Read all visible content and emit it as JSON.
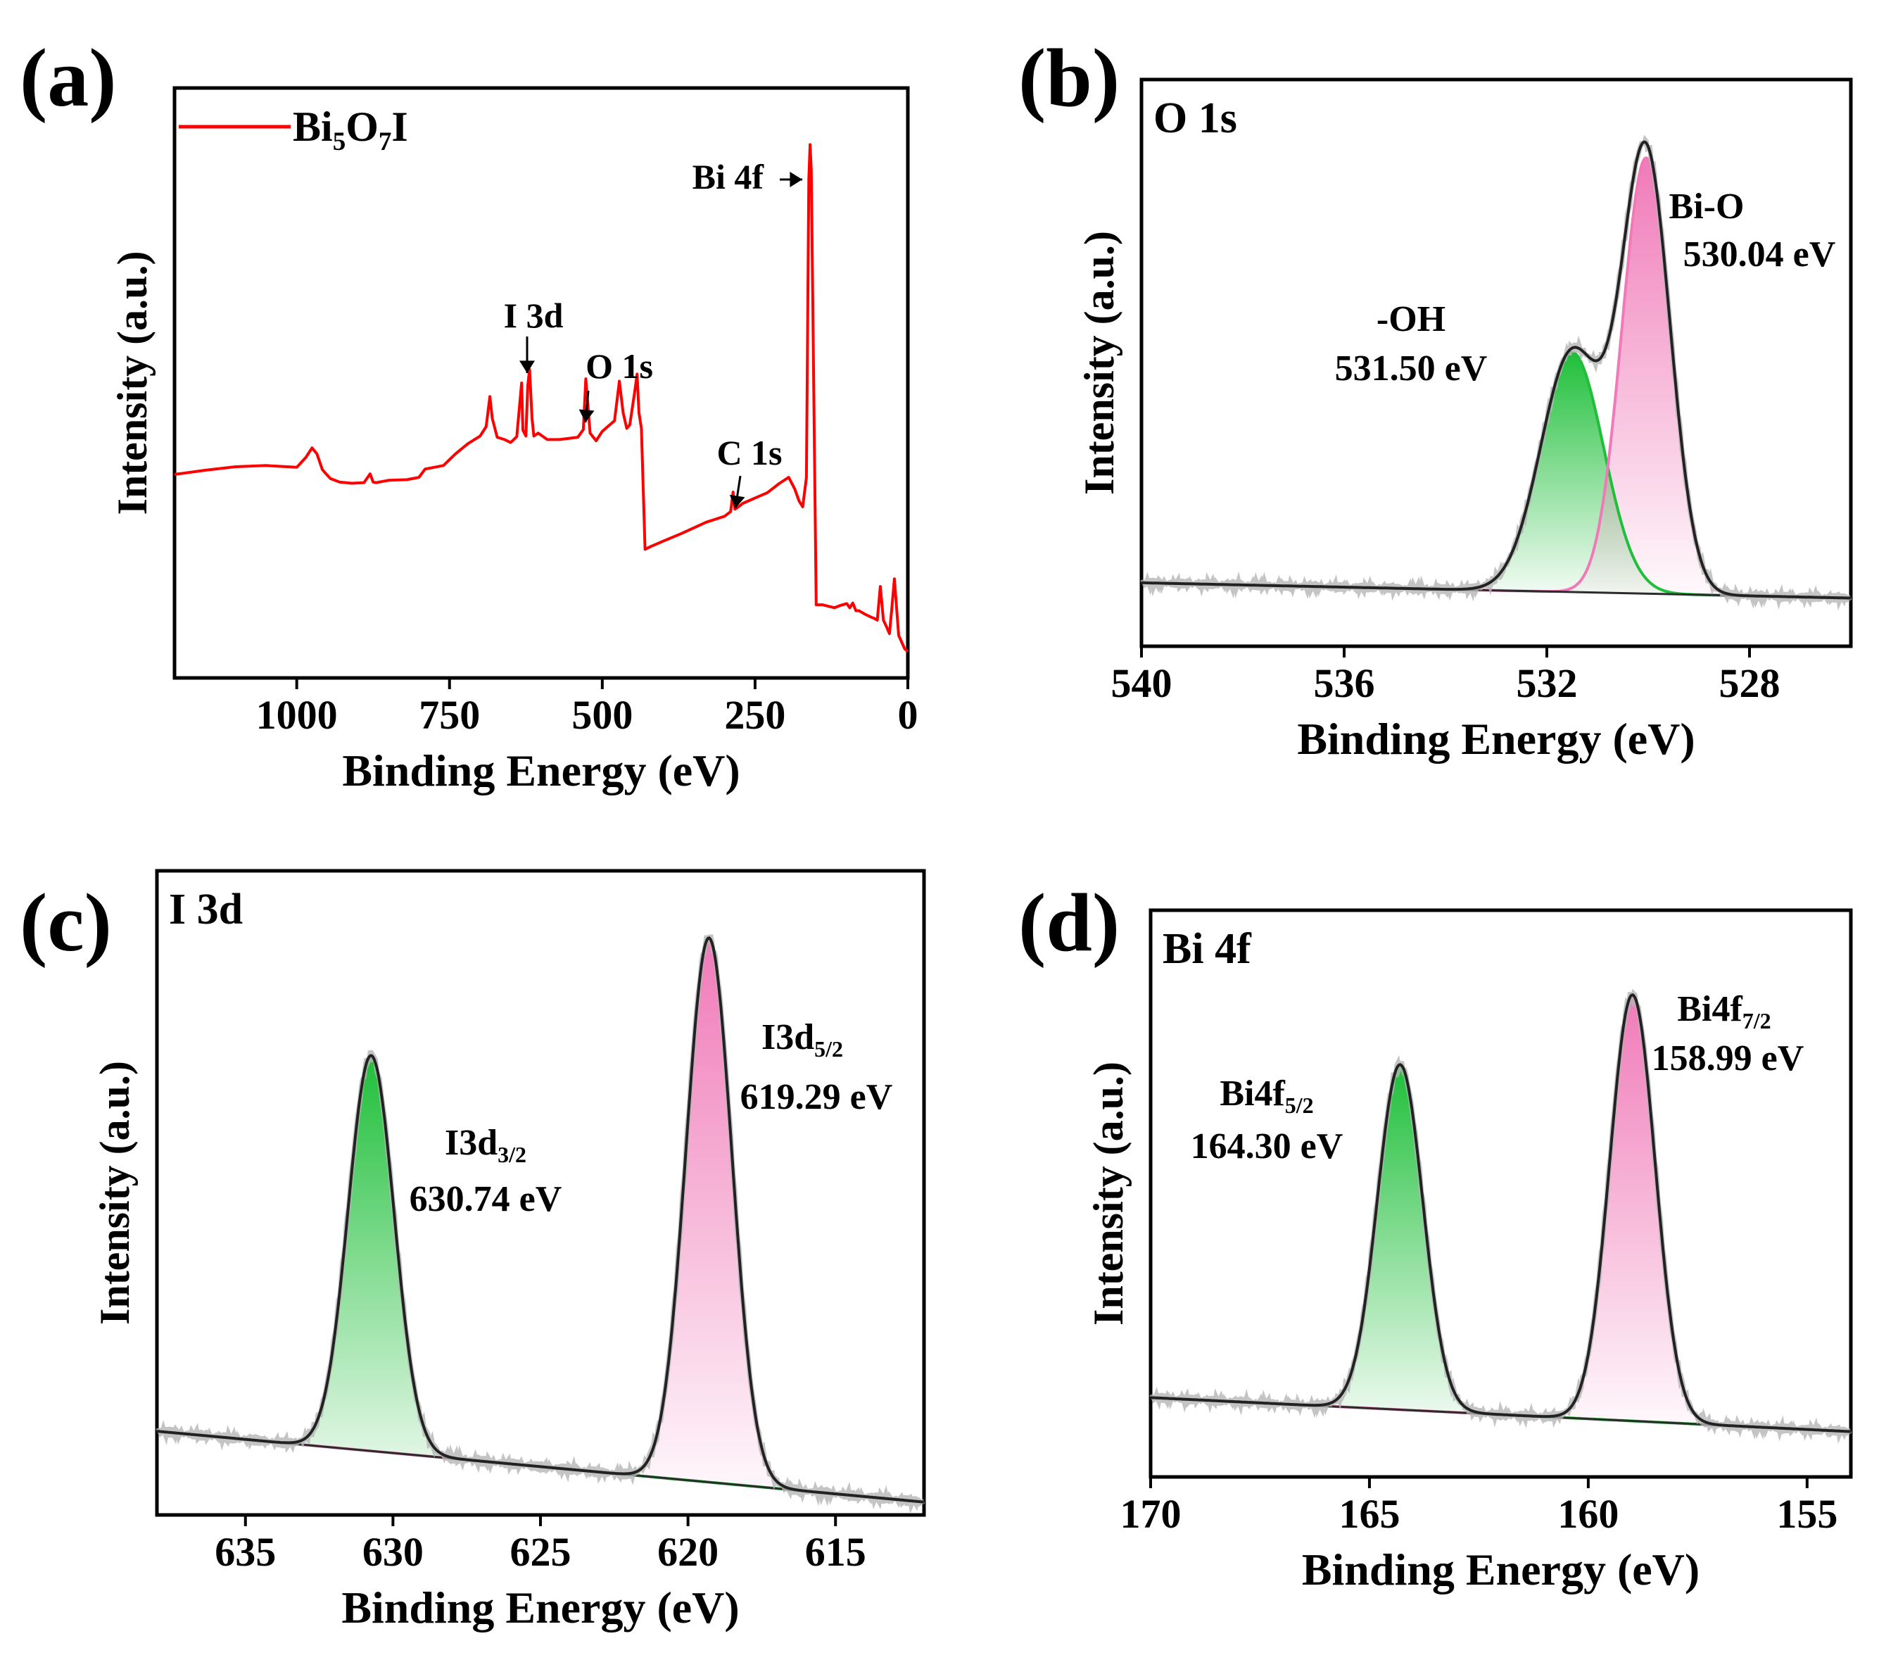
{
  "chart_data": [
    {
      "panel": "(a)",
      "type": "line",
      "title": "",
      "xlabel": "Binding Energy (eV)",
      "ylabel": "Intensity (a.u.)",
      "xlim": [
        1200,
        0
      ],
      "ylim": [
        0,
        100
      ],
      "xticks": [
        1000,
        750,
        500,
        250,
        0
      ],
      "legend": {
        "label": "Bi5O7I",
        "parts": [
          "Bi",
          "5",
          "O",
          "7",
          "I"
        ],
        "color": "#ff0000",
        "position": "top-left"
      },
      "series": [
        {
          "name": "Bi5O7I",
          "color": "#ff0000",
          "x": [
            1200,
            1150,
            1100,
            1050,
            1000,
            985,
            975,
            967,
            958,
            945,
            930,
            910,
            890,
            880,
            875,
            870,
            850,
            820,
            800,
            790,
            760,
            740,
            720,
            700,
            690,
            684,
            680,
            672,
            660,
            650,
            640,
            632,
            630,
            625,
            622,
            619,
            615,
            612,
            605,
            590,
            570,
            540,
            531,
            527,
            520,
            510,
            500,
            480,
            472,
            466,
            460,
            455,
            447,
            443,
            440,
            436,
            430,
            420,
            400,
            370,
            330,
            300,
            290,
            286,
            283,
            280,
            270,
            250,
            230,
            210,
            195,
            185,
            178,
            172,
            166,
            162,
            160,
            158,
            150,
            140,
            120,
            110,
            100,
            95,
            90,
            85,
            80,
            70,
            60,
            55,
            50,
            45,
            40,
            35,
            30,
            26,
            22,
            15,
            5,
            0
          ],
          "y": [
            34.5,
            35.2,
            35.8,
            36.0,
            35.7,
            37.4,
            39.0,
            38.0,
            35.3,
            33.8,
            33.2,
            33.0,
            33.1,
            34.6,
            33.2,
            33.1,
            33.5,
            33.6,
            34.0,
            35.4,
            36.0,
            38.0,
            39.7,
            41.0,
            42.6,
            47.7,
            44.0,
            40.8,
            40.4,
            39.9,
            40.9,
            50.0,
            42.0,
            41.0,
            49.5,
            52.3,
            44.0,
            41.0,
            41.5,
            40.4,
            40.4,
            40.8,
            42.1,
            50.7,
            41.5,
            40.2,
            41.8,
            43.6,
            50.3,
            45.0,
            42.3,
            42.9,
            48.5,
            51.5,
            45.0,
            42.3,
            21.8,
            22.3,
            23.2,
            24.5,
            26.4,
            27.4,
            28.2,
            31.5,
            28.6,
            28.8,
            29.6,
            30.5,
            31.4,
            33.0,
            34.0,
            32.0,
            30.0,
            29.0,
            34.0,
            84.6,
            90.4,
            86.0,
            12.4,
            12.4,
            11.9,
            12.3,
            12.6,
            11.9,
            12.7,
            11.4,
            11.4,
            10.8,
            10.3,
            10.1,
            9.8,
            15.5,
            9.8,
            8.7,
            7.5,
            12.0,
            16.8,
            7.2,
            4.9,
            4.5
          ]
        }
      ],
      "annotations": [
        {
          "text": "Bi 4f",
          "x": 160,
          "arrow": true
        },
        {
          "text": "I 3d",
          "x": 619,
          "arrow": true
        },
        {
          "text": "O 1s",
          "x": 531,
          "arrow": true
        },
        {
          "text": "C 1s",
          "x": 284,
          "arrow": true
        }
      ]
    },
    {
      "panel": "(b)",
      "type": "area",
      "title": "O 1s",
      "xlabel": "Binding Energy (eV)",
      "ylabel": "Intensity (a.u.)",
      "xlim": [
        540,
        526
      ],
      "ylim": [
        0,
        100
      ],
      "xticks": [
        540,
        536,
        532,
        528
      ],
      "baseline": {
        "from": [
          540,
          11.2
        ],
        "to": [
          526,
          8.5
        ]
      },
      "peaks": [
        {
          "name": "-OH",
          "center": 531.5,
          "height": 42.3,
          "sigma": 0.62,
          "color": "#1fbf3a",
          "label": "-OH",
          "value_label": "531.50 eV"
        },
        {
          "name": "Bi-O",
          "center": 530.04,
          "height": 76.9,
          "sigma": 0.48,
          "color": "#f07ab8",
          "label": "Bi-O",
          "value_label": "530.04 eV"
        }
      ]
    },
    {
      "panel": "(c)",
      "type": "area",
      "title": "I 3d",
      "xlabel": "Binding Energy (eV)",
      "ylabel": "Intensity (a.u.)",
      "xlim": [
        638,
        612
      ],
      "ylim": [
        0,
        100
      ],
      "xticks": [
        635,
        630,
        625,
        620,
        615
      ],
      "baseline": {
        "from": [
          638,
          13.0
        ],
        "to": [
          612,
          2.0
        ]
      },
      "peaks": [
        {
          "name": "I3d3/2",
          "center": 630.74,
          "height": 61.4,
          "sigma": 0.78,
          "color": "#1fbf3a",
          "label_parts": [
            "I3d",
            "3/2"
          ],
          "value_label": "630.74 eV"
        },
        {
          "name": "I3d5/2",
          "center": 619.29,
          "height": 84.5,
          "sigma": 0.78,
          "color": "#f07ab8",
          "label_parts": [
            "I3d",
            "5/2"
          ],
          "value_label": "619.29 eV"
        }
      ]
    },
    {
      "panel": "(d)",
      "type": "area",
      "title": "Bi 4f",
      "xlabel": "Binding Energy (eV)",
      "ylabel": "Intensity (a.u.)",
      "xlim": [
        170,
        154
      ],
      "ylim": [
        0,
        100
      ],
      "xticks": [
        170,
        165,
        160,
        155
      ],
      "baseline": {
        "from": [
          170,
          14.0
        ],
        "to": [
          154,
          8.0
        ]
      },
      "peaks": [
        {
          "name": "Bi4f5/2",
          "center": 164.3,
          "height": 60.9,
          "sigma": 0.52,
          "color": "#1fbf3a",
          "label_parts": [
            "Bi4f",
            "5/2"
          ],
          "value_label": "164.30 eV"
        },
        {
          "name": "Bi4f7/2",
          "center": 158.99,
          "height": 75.2,
          "sigma": 0.52,
          "color": "#f07ab8",
          "label_parts": [
            "Bi4f",
            "7/2"
          ],
          "value_label": "158.99 eV"
        }
      ]
    }
  ]
}
